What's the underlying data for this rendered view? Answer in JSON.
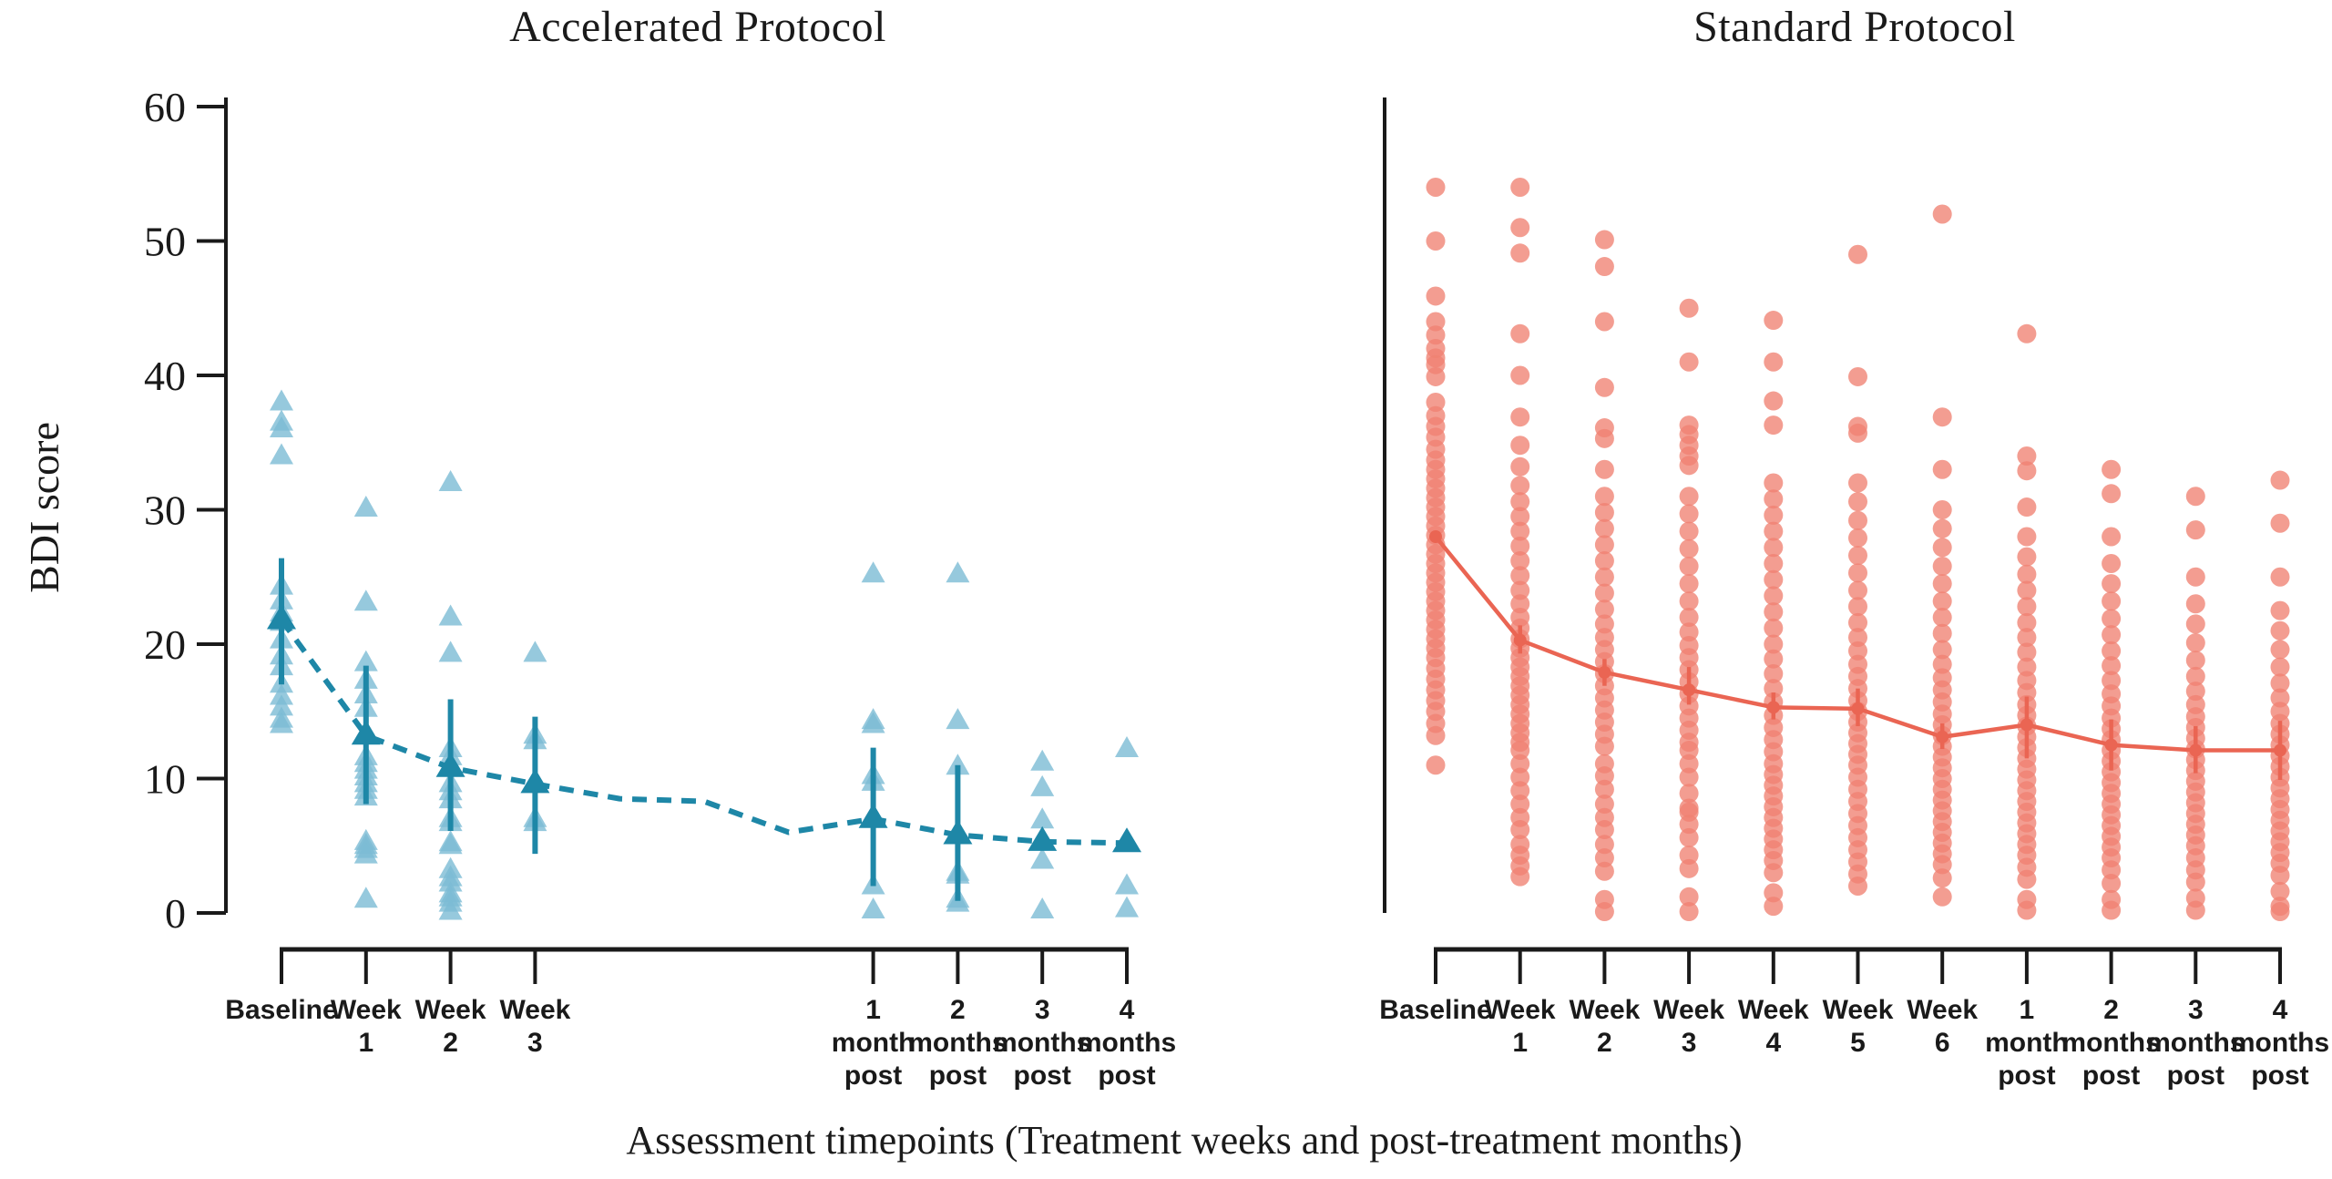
{
  "figure": {
    "ylabel": "BDI score",
    "xlabel": "Assessment timepoints (Treatment weeks and post-treatment months)"
  },
  "colors": {
    "teal_point": "#7cbcd4",
    "teal_dark": "#1e87a7",
    "salmon_point": "#ef8272",
    "salmon_line": "#ea6553",
    "axis": "#1a1a1a"
  },
  "chart_data": [
    {
      "type": "scatter",
      "title": "Accelerated Protocol",
      "marker": "triangle",
      "line_style": "dashed",
      "ylabel": "BDI score",
      "ylim": [
        0,
        60
      ],
      "y_ticks": [
        0,
        10,
        20,
        30,
        40,
        50,
        60
      ],
      "categories": [
        "Baseline",
        "Week 1",
        "Week 2",
        "Week 3",
        "1 month post",
        "2 months post",
        "3 months post",
        "4 months post"
      ],
      "tick_label_lines": [
        [
          "Baseline"
        ],
        [
          "Week",
          "1"
        ],
        [
          "Week",
          "2"
        ],
        [
          "Week",
          "3"
        ],
        [
          "1",
          "month",
          "post"
        ],
        [
          "2",
          "months",
          "post"
        ],
        [
          "3",
          "months",
          "post"
        ],
        [
          "4",
          "months",
          "post"
        ]
      ],
      "x_units": [
        0,
        1,
        2,
        3,
        7,
        8,
        9,
        10
      ],
      "points": [
        [
          38,
          36.5,
          36,
          34,
          24.3,
          23.2,
          22.3,
          21.6,
          20.3,
          19.1,
          18.3,
          17,
          16.1,
          15.3,
          14.4,
          14
        ],
        [
          30.1,
          23.1,
          18.6,
          17.3,
          16.2,
          15.2,
          13.2,
          11.6,
          11.1,
          10.6,
          10.1,
          9.6,
          9.1,
          8.6,
          5.3,
          5,
          4.7,
          4.3,
          1
        ],
        [
          32,
          22,
          19.3,
          12.2,
          11.6,
          11,
          9.6,
          9,
          8.4,
          7,
          6.7,
          5.2,
          5,
          3.2,
          2.6,
          2.2,
          1.4,
          1.1,
          0.7,
          0.1
        ],
        [
          19.3,
          13.2,
          12.8,
          9.6,
          7,
          6.7
        ],
        [
          25.2,
          14.3,
          14,
          10.2,
          9.7,
          7,
          2,
          0.2
        ],
        [
          25.2,
          14.3,
          10.9,
          5.8,
          3,
          2.8,
          1,
          0.7
        ],
        [
          11.2,
          9.3,
          6.9,
          5.3,
          3.9,
          0.2
        ],
        [
          12.2,
          5.3,
          2,
          0.3
        ]
      ],
      "means": {
        "x_units": [
          0,
          1,
          2,
          3,
          4,
          5,
          6,
          7,
          8,
          9,
          10
        ],
        "values": [
          21.8,
          13.2,
          10.8,
          9.6,
          8.5,
          8.3,
          6.0,
          7.0,
          5.8,
          5.3,
          5.2
        ]
      },
      "error_bars": [
        {
          "unit": 0,
          "lo": 17.0,
          "hi": 26.4
        },
        {
          "unit": 1,
          "lo": 8.1,
          "hi": 18.4
        },
        {
          "unit": 2,
          "lo": 6.1,
          "hi": 15.9
        },
        {
          "unit": 3,
          "lo": 4.4,
          "hi": 14.6
        },
        {
          "unit": 7,
          "lo": 2.0,
          "hi": 12.3
        },
        {
          "unit": 8,
          "lo": 0.9,
          "hi": 11.0
        }
      ]
    },
    {
      "type": "scatter",
      "title": "Standard Protocol",
      "marker": "circle",
      "line_style": "solid",
      "ylim": [
        0,
        60
      ],
      "categories": [
        "Baseline",
        "Week 1",
        "Week 2",
        "Week 3",
        "Week 4",
        "Week 5",
        "Week 6",
        "1 month post",
        "2 months post",
        "3 months post",
        "4 months post"
      ],
      "tick_label_lines": [
        [
          "Baseline"
        ],
        [
          "Week",
          "1"
        ],
        [
          "Week",
          "2"
        ],
        [
          "Week",
          "3"
        ],
        [
          "Week",
          "4"
        ],
        [
          "Week",
          "5"
        ],
        [
          "Week",
          "6"
        ],
        [
          "1",
          "month",
          "post"
        ],
        [
          "2",
          "months",
          "post"
        ],
        [
          "3",
          "months",
          "post"
        ],
        [
          "4",
          "months",
          "post"
        ]
      ],
      "x_units": [
        0,
        1,
        2,
        3,
        4,
        5,
        6,
        7,
        8,
        9,
        10
      ],
      "points": [
        [
          54,
          50,
          45.9,
          44,
          43,
          42,
          41.3,
          40.8,
          39.9,
          38,
          37,
          36.2,
          35.4,
          34.5,
          33.7,
          33,
          32.3,
          31.6,
          30.9,
          30.2,
          29.5,
          28.8,
          28.1,
          27.4,
          26.7,
          26,
          25.3,
          24.6,
          23.9,
          23.2,
          22.5,
          21.8,
          21.1,
          20.4,
          19.7,
          19,
          18.2,
          17.4,
          16.6,
          15.8,
          15,
          14.1,
          13.2,
          11
        ],
        [
          54,
          51,
          49.1,
          43.1,
          40,
          36.9,
          34.8,
          33.2,
          31.8,
          30.6,
          29.5,
          28.4,
          27.3,
          26.2,
          25.1,
          24,
          23,
          22,
          21.2,
          20.4,
          19.7,
          19,
          18.3,
          17.6,
          16.9,
          16.2,
          15.5,
          14.8,
          14.1,
          13.4,
          12.7,
          12.1,
          11.1,
          10.1,
          9.1,
          8.1,
          7.1,
          6.2,
          5.1,
          4.3,
          3.5,
          2.7
        ],
        [
          50.1,
          48.1,
          44,
          39.1,
          36.1,
          35.3,
          33,
          31,
          29.8,
          28.6,
          27.4,
          26.2,
          25,
          23.8,
          22.6,
          21.5,
          20.5,
          19.6,
          18.7,
          17.8,
          16.9,
          16,
          15.1,
          14.2,
          13.3,
          12.4,
          11.1,
          10.2,
          9.2,
          8.1,
          7.1,
          6.2,
          5.1,
          4.1,
          3.1,
          1,
          0.1
        ],
        [
          45,
          41,
          36.3,
          35.6,
          34.8,
          34,
          33.3,
          31,
          29.7,
          28.4,
          27.1,
          25.8,
          24.5,
          23.2,
          22,
          20.9,
          19.9,
          19,
          18.1,
          17.2,
          16.3,
          15.4,
          14.5,
          13.6,
          12.7,
          12.1,
          11.1,
          10.1,
          8.9,
          7.8,
          7.5,
          6.6,
          5.6,
          4.3,
          3.3,
          1.2,
          0.1
        ],
        [
          44.1,
          41,
          38.1,
          36.3,
          32,
          30.8,
          29.6,
          28.4,
          27.2,
          26,
          24.8,
          23.6,
          22.4,
          21.2,
          20,
          18.9,
          17.8,
          16.7,
          15.7,
          14.7,
          13.8,
          12.9,
          12,
          11.1,
          10.3,
          9.5,
          8.7,
          7.9,
          7.1,
          6.3,
          5.5,
          4.7,
          3.9,
          3,
          1.5,
          0.5
        ],
        [
          49,
          39.9,
          36.2,
          35.7,
          32,
          30.6,
          29.2,
          27.9,
          26.6,
          25.3,
          24,
          22.8,
          21.6,
          20.5,
          19.5,
          18.5,
          17.6,
          16.7,
          15.8,
          15,
          14.2,
          13.4,
          12.6,
          11.8,
          11,
          10.1,
          9.2,
          8.3,
          7.4,
          6.5,
          5.6,
          4.7,
          3.8,
          2.9,
          2
        ],
        [
          52,
          36.9,
          33,
          30,
          28.6,
          27.2,
          25.8,
          24.5,
          23.2,
          22,
          20.8,
          19.6,
          18.5,
          17.5,
          16.6,
          15.7,
          14.8,
          14,
          13.2,
          12.4,
          11.6,
          10.8,
          10,
          9.2,
          8.4,
          7.6,
          6.8,
          6,
          5.2,
          4.4,
          3.6,
          2.6,
          1.2
        ],
        [
          43.1,
          34,
          32.9,
          30.2,
          28,
          26.5,
          25.2,
          24,
          22.8,
          21.6,
          20.5,
          19.4,
          18.3,
          17.3,
          16.4,
          15.5,
          14.7,
          13.9,
          13.1,
          12.3,
          11.5,
          10.7,
          9.9,
          9.1,
          8.3,
          7.5,
          6.7,
          5.9,
          5.1,
          4.3,
          3.4,
          2.5,
          1,
          0.2
        ],
        [
          33,
          31.2,
          28,
          26,
          24.5,
          23.2,
          21.9,
          20.7,
          19.5,
          18.4,
          17.3,
          16.3,
          15.4,
          14.5,
          13.7,
          12.9,
          12.1,
          11.3,
          10.5,
          9.7,
          8.9,
          8.1,
          7.3,
          6.5,
          5.7,
          4.9,
          4.1,
          3.2,
          2.2,
          1,
          0.2
        ],
        [
          31,
          28.5,
          25,
          23,
          21.5,
          20.1,
          18.8,
          17.6,
          16.5,
          15.5,
          14.6,
          13.8,
          13,
          12.2,
          11.4,
          10.6,
          9.8,
          9,
          8.2,
          7.4,
          6.6,
          5.8,
          5,
          4.1,
          3.2,
          2.3,
          1.1,
          0.2
        ],
        [
          32.2,
          29,
          25,
          22.5,
          21,
          19.6,
          18.3,
          17.1,
          16,
          15,
          14.1,
          13.3,
          12.5,
          11.7,
          10.9,
          10.1,
          9.3,
          8.5,
          7.7,
          6.9,
          6.1,
          5.3,
          4.5,
          3.7,
          2.8,
          1.6,
          0.5,
          0.1
        ],
        []
      ],
      "means": {
        "x_units": [
          0,
          1,
          2,
          3,
          4,
          5,
          6,
          7,
          8,
          9,
          10
        ],
        "values": [
          28.0,
          20.3,
          17.9,
          16.6,
          15.3,
          15.2,
          13.1,
          14.0,
          12.5,
          12.1,
          12.1
        ]
      },
      "error_bars": [
        {
          "unit": 1,
          "lo": 19.3,
          "hi": 21.4
        },
        {
          "unit": 2,
          "lo": 16.9,
          "hi": 18.9
        },
        {
          "unit": 3,
          "lo": 15.5,
          "hi": 18.3
        },
        {
          "unit": 4,
          "lo": 14.4,
          "hi": 16.4
        },
        {
          "unit": 5,
          "lo": 13.9,
          "hi": 16.7
        },
        {
          "unit": 6,
          "lo": 12.2,
          "hi": 14.1
        },
        {
          "unit": 7,
          "lo": 11.5,
          "hi": 16.1
        },
        {
          "unit": 8,
          "lo": 10.6,
          "hi": 14.4
        },
        {
          "unit": 9,
          "lo": 10.4,
          "hi": 13.9
        },
        {
          "unit": 10,
          "lo": 9.9,
          "hi": 14.3
        }
      ]
    }
  ]
}
